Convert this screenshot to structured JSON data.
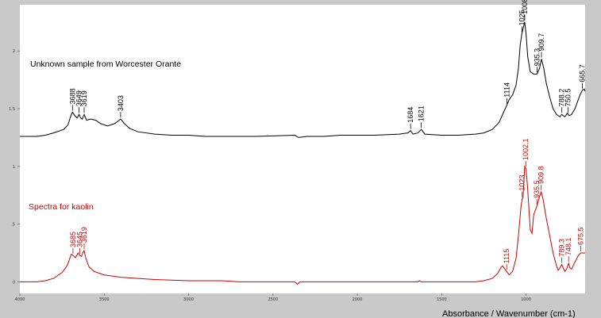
{
  "chart_data": {
    "type": "line",
    "xlabel": "Absorbance / Wavenumber (cm-1)",
    "ylabel": "",
    "x_reversed": true,
    "xlim": [
      4000,
      650
    ],
    "ylim": [
      -0.1,
      2.4
    ],
    "x_ticks": [
      "4000",
      "3500",
      "3000",
      "2500",
      "2000",
      "1500",
      "1000"
    ],
    "y_ticks": [
      "0",
      ".5",
      "1",
      "1.5",
      "2"
    ],
    "grid": false,
    "series": [
      {
        "name": "Unknown sample from Worcester Orante",
        "color": "#000000",
        "points": [
          [
            4000,
            1.26
          ],
          [
            3950,
            1.26
          ],
          [
            3900,
            1.26
          ],
          [
            3850,
            1.27
          ],
          [
            3800,
            1.29
          ],
          [
            3740,
            1.32
          ],
          [
            3715,
            1.36
          ],
          [
            3700,
            1.43
          ],
          [
            3688,
            1.47
          ],
          [
            3675,
            1.44
          ],
          [
            3660,
            1.42
          ],
          [
            3649,
            1.45
          ],
          [
            3640,
            1.42
          ],
          [
            3630,
            1.41
          ],
          [
            3619,
            1.45
          ],
          [
            3605,
            1.4
          ],
          [
            3580,
            1.41
          ],
          [
            3550,
            1.4
          ],
          [
            3520,
            1.37
          ],
          [
            3480,
            1.35
          ],
          [
            3440,
            1.37
          ],
          [
            3420,
            1.39
          ],
          [
            3403,
            1.41
          ],
          [
            3380,
            1.37
          ],
          [
            3350,
            1.33
          ],
          [
            3300,
            1.3
          ],
          [
            3200,
            1.28
          ],
          [
            3100,
            1.27
          ],
          [
            3000,
            1.27
          ],
          [
            2900,
            1.26
          ],
          [
            2700,
            1.26
          ],
          [
            2600,
            1.26
          ],
          [
            2370,
            1.27
          ],
          [
            2350,
            1.25
          ],
          [
            2300,
            1.26
          ],
          [
            2200,
            1.26
          ],
          [
            2100,
            1.27
          ],
          [
            2000,
            1.27
          ],
          [
            1900,
            1.27
          ],
          [
            1750,
            1.28
          ],
          [
            1700,
            1.29
          ],
          [
            1684,
            1.31
          ],
          [
            1670,
            1.28
          ],
          [
            1640,
            1.29
          ],
          [
            1621,
            1.32
          ],
          [
            1600,
            1.28
          ],
          [
            1500,
            1.27
          ],
          [
            1400,
            1.27
          ],
          [
            1300,
            1.28
          ],
          [
            1250,
            1.29
          ],
          [
            1200,
            1.32
          ],
          [
            1160,
            1.38
          ],
          [
            1130,
            1.48
          ],
          [
            1114,
            1.53
          ],
          [
            1100,
            1.58
          ],
          [
            1080,
            1.62
          ],
          [
            1060,
            1.7
          ],
          [
            1045,
            1.85
          ],
          [
            1035,
            2.05
          ],
          [
            1025,
            2.15
          ],
          [
            1010,
            2.24
          ],
          [
            1008,
            2.25
          ],
          [
            1000,
            2.15
          ],
          [
            990,
            1.95
          ],
          [
            975,
            1.82
          ],
          [
            955,
            1.8
          ],
          [
            935,
            1.8
          ],
          [
            920,
            1.85
          ],
          [
            909,
            1.93
          ],
          [
            895,
            1.85
          ],
          [
            880,
            1.72
          ],
          [
            860,
            1.6
          ],
          [
            840,
            1.5
          ],
          [
            820,
            1.45
          ],
          [
            800,
            1.43
          ],
          [
            788,
            1.45
          ],
          [
            780,
            1.44
          ],
          [
            770,
            1.43
          ],
          [
            755,
            1.46
          ],
          [
            745,
            1.44
          ],
          [
            730,
            1.45
          ],
          [
            710,
            1.5
          ],
          [
            695,
            1.56
          ],
          [
            680,
            1.62
          ],
          [
            666,
            1.66
          ],
          [
            655,
            1.67
          ],
          [
            650,
            1.65
          ]
        ],
        "peak_labels": [
          {
            "x": 3688,
            "label": "3688"
          },
          {
            "x": 3649,
            "label": "3649"
          },
          {
            "x": 3619,
            "label": "3619"
          },
          {
            "x": 3403,
            "label": "3403"
          },
          {
            "x": 1684,
            "label": "1684"
          },
          {
            "x": 1621,
            "label": "1621"
          },
          {
            "x": 1114,
            "label": "1114"
          },
          {
            "x": 1025,
            "label": "1025"
          },
          {
            "x": 1008,
            "label": "1008.3"
          },
          {
            "x": 935,
            "label": "935.3"
          },
          {
            "x": 909,
            "label": "909.7"
          },
          {
            "x": 788,
            "label": "788.2"
          },
          {
            "x": 750,
            "label": "750.5"
          },
          {
            "x": 666,
            "label": "665.7"
          }
        ]
      },
      {
        "name": "Spectra for kaolin",
        "color": "#cc0000",
        "points": [
          [
            4000,
            0.0
          ],
          [
            3950,
            0.0
          ],
          [
            3900,
            0.0
          ],
          [
            3850,
            0.01
          ],
          [
            3800,
            0.03
          ],
          [
            3750,
            0.08
          ],
          [
            3720,
            0.14
          ],
          [
            3705,
            0.2
          ],
          [
            3695,
            0.24
          ],
          [
            3685,
            0.23
          ],
          [
            3670,
            0.21
          ],
          [
            3655,
            0.25
          ],
          [
            3645,
            0.23
          ],
          [
            3635,
            0.22
          ],
          [
            3625,
            0.26
          ],
          [
            3619,
            0.27
          ],
          [
            3610,
            0.21
          ],
          [
            3590,
            0.13
          ],
          [
            3560,
            0.09
          ],
          [
            3500,
            0.06
          ],
          [
            3400,
            0.04
          ],
          [
            3300,
            0.03
          ],
          [
            3200,
            0.02
          ],
          [
            3000,
            0.01
          ],
          [
            2800,
            0.01
          ],
          [
            2700,
            0.0
          ],
          [
            2370,
            0.0
          ],
          [
            2355,
            -0.02
          ],
          [
            2340,
            0.0
          ],
          [
            2200,
            0.0
          ],
          [
            2000,
            0.0
          ],
          [
            1800,
            0.0
          ],
          [
            1640,
            0.0
          ],
          [
            1630,
            0.01
          ],
          [
            1620,
            0.0
          ],
          [
            1400,
            0.0
          ],
          [
            1300,
            0.0
          ],
          [
            1250,
            0.01
          ],
          [
            1200,
            0.03
          ],
          [
            1170,
            0.07
          ],
          [
            1150,
            0.12
          ],
          [
            1140,
            0.14
          ],
          [
            1120,
            0.1
          ],
          [
            1100,
            0.06
          ],
          [
            1080,
            0.09
          ],
          [
            1060,
            0.2
          ],
          [
            1045,
            0.4
          ],
          [
            1030,
            0.65
          ],
          [
            1023,
            0.72
          ],
          [
            1018,
            0.73
          ],
          [
            1008,
            1.0
          ],
          [
            1000,
            0.98
          ],
          [
            990,
            0.8
          ],
          [
            975,
            0.45
          ],
          [
            965,
            0.42
          ],
          [
            955,
            0.58
          ],
          [
            935,
            0.66
          ],
          [
            920,
            0.74
          ],
          [
            910,
            0.78
          ],
          [
            900,
            0.72
          ],
          [
            880,
            0.55
          ],
          [
            860,
            0.4
          ],
          [
            840,
            0.25
          ],
          [
            820,
            0.14
          ],
          [
            810,
            0.1
          ],
          [
            800,
            0.12
          ],
          [
            789,
            0.15
          ],
          [
            780,
            0.12
          ],
          [
            770,
            0.09
          ],
          [
            760,
            0.11
          ],
          [
            748,
            0.16
          ],
          [
            740,
            0.12
          ],
          [
            730,
            0.11
          ],
          [
            715,
            0.16
          ],
          [
            700,
            0.2
          ],
          [
            690,
            0.23
          ],
          [
            676,
            0.25
          ],
          [
            665,
            0.25
          ],
          [
            650,
            0.25
          ]
        ],
        "peak_labels": [
          {
            "x": 3685,
            "label": "3685"
          },
          {
            "x": 3645,
            "label": "3645"
          },
          {
            "x": 3619,
            "label": "3619"
          },
          {
            "x": 1115,
            "label": "1115"
          },
          {
            "x": 1023,
            "label": "1023"
          },
          {
            "x": 1002,
            "label": "1002.1"
          },
          {
            "x": 936,
            "label": "935.5"
          },
          {
            "x": 910,
            "label": "909.8"
          },
          {
            "x": 789,
            "label": "789.3"
          },
          {
            "x": 748,
            "label": "748.1"
          },
          {
            "x": 676,
            "label": "675.5"
          }
        ]
      }
    ]
  }
}
